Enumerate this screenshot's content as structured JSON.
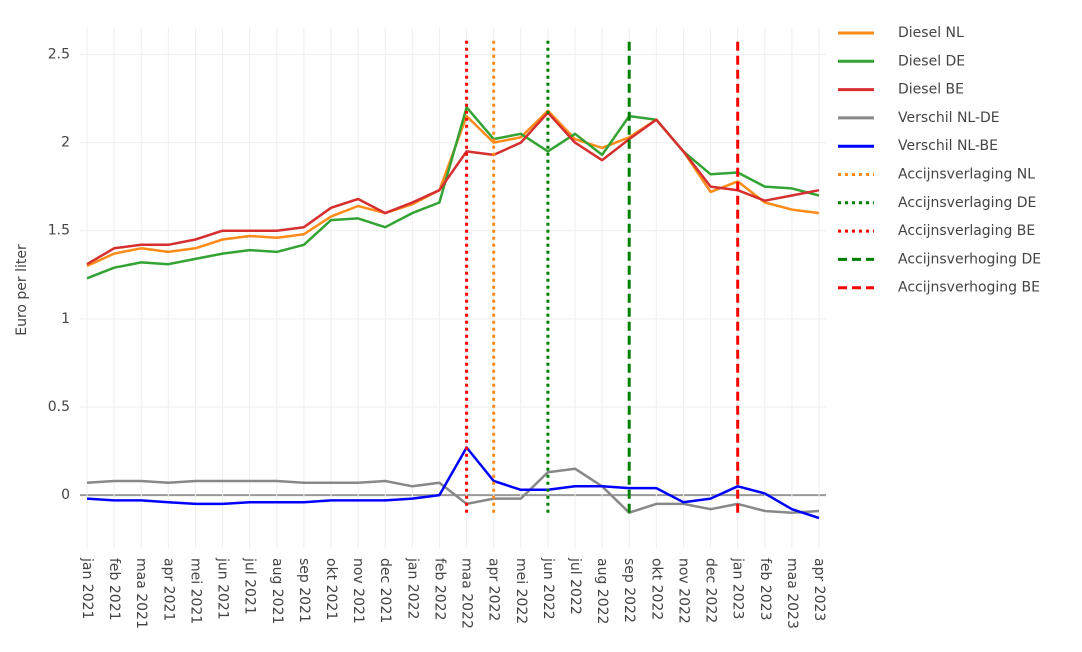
{
  "chart_data": {
    "type": "line",
    "y_label": "Euro per liter",
    "x": [
      "2021-01",
      "2021-02",
      "2021-03",
      "2021-04",
      "2021-05",
      "2021-06",
      "2021-07",
      "2021-08",
      "2021-09",
      "2021-10",
      "2021-11",
      "2021-12",
      "2022-01",
      "2022-02",
      "2022-03",
      "2022-04",
      "2022-05",
      "2022-06",
      "2022-07",
      "2022-08",
      "2022-09",
      "2022-10",
      "2022-11",
      "2022-12",
      "2023-01",
      "2023-02",
      "2023-03",
      "2023-04"
    ],
    "xlim": [
      "2021-01",
      "2023-04"
    ],
    "xticks": [
      {
        "value": "2021-01",
        "label": "jan 2021"
      },
      {
        "value": "2021-02",
        "label": "feb 2021"
      },
      {
        "value": "2021-03",
        "label": "maa 2021"
      },
      {
        "value": "2021-04",
        "label": "apr 2021"
      },
      {
        "value": "2021-05",
        "label": "mei 2021"
      },
      {
        "value": "2021-06",
        "label": "jun 2021"
      },
      {
        "value": "2021-07",
        "label": "jul 2021"
      },
      {
        "value": "2021-08",
        "label": "aug 2021"
      },
      {
        "value": "2021-09",
        "label": "sep 2021"
      },
      {
        "value": "2021-10",
        "label": "okt 2021"
      },
      {
        "value": "2021-11",
        "label": "nov 2021"
      },
      {
        "value": "2021-12",
        "label": "dec 2021"
      },
      {
        "value": "2022-01",
        "label": "jan 2022"
      },
      {
        "value": "2022-02",
        "label": "feb 2022"
      },
      {
        "value": "2022-03",
        "label": "maa 2022"
      },
      {
        "value": "2022-04",
        "label": "apr 2022"
      },
      {
        "value": "2022-05",
        "label": "mei 2022"
      },
      {
        "value": "2022-06",
        "label": "jun 2022"
      },
      {
        "value": "2022-07",
        "label": "jul 2022"
      },
      {
        "value": "2022-08",
        "label": "aug 2022"
      },
      {
        "value": "2022-09",
        "label": "sep 2022"
      },
      {
        "value": "2022-10",
        "label": "okt 2022"
      },
      {
        "value": "2022-11",
        "label": "nov 2022"
      },
      {
        "value": "2022-12",
        "label": "dec 2022"
      },
      {
        "value": "2023-01",
        "label": "jan 2023"
      },
      {
        "value": "2023-02",
        "label": "feb 2023"
      },
      {
        "value": "2023-03",
        "label": "maa 2023"
      },
      {
        "value": "2023-04",
        "label": "apr 2023"
      }
    ],
    "ylim": [
      -0.3,
      2.65
    ],
    "yticks": [
      0,
      0.5,
      1,
      1.5,
      2,
      2.5
    ],
    "grid": true,
    "legend": "right",
    "series": [
      {
        "name": "Diesel NL",
        "color": "#ff8c1a",
        "dash": "solid",
        "values": [
          1.3,
          1.37,
          1.4,
          1.38,
          1.4,
          1.45,
          1.47,
          1.46,
          1.48,
          1.58,
          1.64,
          1.6,
          1.65,
          1.73,
          2.15,
          2.0,
          2.03,
          2.18,
          2.02,
          1.97,
          2.03,
          2.13,
          1.95,
          1.72,
          1.78,
          1.66,
          1.62,
          1.6
        ]
      },
      {
        "name": "Diesel DE",
        "color": "#33a333",
        "dash": "solid",
        "values": [
          1.23,
          1.29,
          1.32,
          1.31,
          1.34,
          1.37,
          1.39,
          1.38,
          1.42,
          1.56,
          1.57,
          1.52,
          1.6,
          1.66,
          2.2,
          2.02,
          2.05,
          1.95,
          2.05,
          1.93,
          2.15,
          2.13,
          1.95,
          1.82,
          1.83,
          1.75,
          1.74,
          1.7
        ]
      },
      {
        "name": "Diesel BE",
        "color": "#d62f2f",
        "dash": "solid",
        "values": [
          1.31,
          1.4,
          1.42,
          1.42,
          1.45,
          1.5,
          1.5,
          1.5,
          1.52,
          1.63,
          1.68,
          1.6,
          1.66,
          1.73,
          1.95,
          1.93,
          2.0,
          2.17,
          2.0,
          1.9,
          2.02,
          2.13,
          1.95,
          1.75,
          1.73,
          1.67,
          1.7,
          1.73
        ]
      },
      {
        "name": "Verschil NL-DE",
        "color": "#888888",
        "dash": "solid",
        "values": [
          0.07,
          0.08,
          0.08,
          0.07,
          0.08,
          0.08,
          0.08,
          0.08,
          0.07,
          0.07,
          0.07,
          0.08,
          0.05,
          0.07,
          -0.05,
          -0.02,
          -0.02,
          0.13,
          0.15,
          0.05,
          -0.1,
          -0.05,
          -0.05,
          -0.08,
          -0.05,
          -0.09,
          -0.1,
          -0.09
        ]
      },
      {
        "name": "Verschil NL-BE",
        "color": "#0000ff",
        "dash": "solid",
        "values": [
          -0.02,
          -0.03,
          -0.03,
          -0.04,
          -0.05,
          -0.05,
          -0.04,
          -0.04,
          -0.04,
          -0.03,
          -0.03,
          -0.03,
          -0.02,
          0.0,
          0.27,
          0.08,
          0.03,
          0.03,
          0.05,
          0.05,
          0.04,
          0.04,
          -0.04,
          -0.02,
          0.05,
          0.01,
          -0.08,
          -0.13
        ]
      },
      {
        "name": "Accijnsverlaging NL",
        "color": "#ff8c1a",
        "dash": "dot",
        "x": [
          "2022-04",
          "2022-04"
        ],
        "values": [
          -0.1,
          2.6
        ]
      },
      {
        "name": "Accijnsverlaging DE",
        "color": "#008000",
        "dash": "dot",
        "x": [
          "2022-06",
          "2022-06"
        ],
        "values": [
          -0.1,
          2.6
        ]
      },
      {
        "name": "Accijnsverlaging BE",
        "color": "#ff0000",
        "dash": "dot",
        "x": [
          "2022-03",
          "2022-03"
        ],
        "values": [
          -0.1,
          2.6
        ]
      },
      {
        "name": "Accijnsverhoging DE",
        "color": "#008000",
        "dash": "dash",
        "x": [
          "2022-09",
          "2022-09"
        ],
        "values": [
          -0.1,
          2.6
        ]
      },
      {
        "name": "Accijnsverhoging BE",
        "color": "#ff0000",
        "dash": "dash",
        "x": [
          "2023-01",
          "2023-01"
        ],
        "values": [
          -0.1,
          2.6
        ]
      }
    ]
  }
}
